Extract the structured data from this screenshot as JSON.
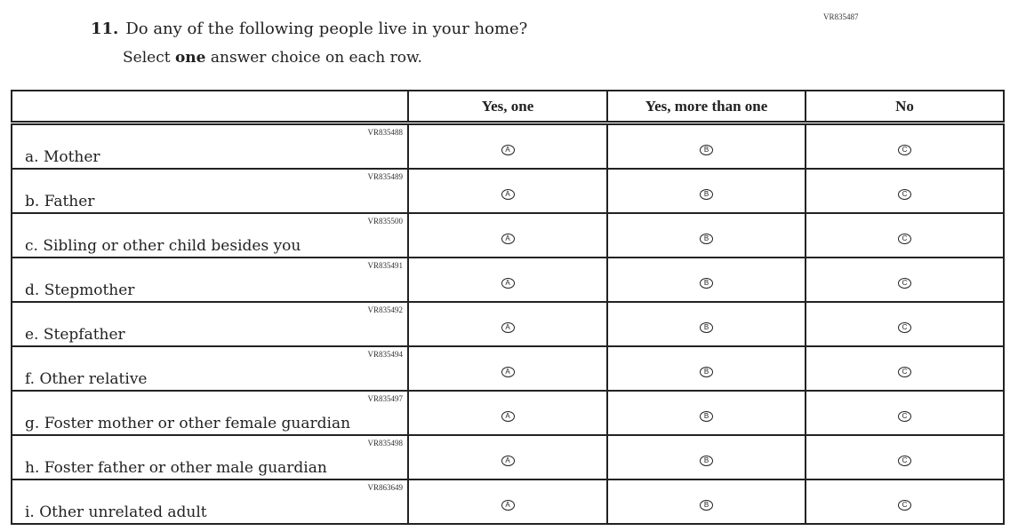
{
  "top_code": "VR835487",
  "question": {
    "number": "11.",
    "text": "Do any of the following people live in your home?",
    "instruction_pre": "Select ",
    "instruction_bold": "one",
    "instruction_post": " answer choice on each row."
  },
  "columns": [
    "Yes, one",
    "Yes, more than one",
    "No"
  ],
  "bubbles": [
    "A",
    "B",
    "C"
  ],
  "rows": [
    {
      "label": "a.  Mother",
      "code": "VR835488"
    },
    {
      "label": "b.  Father",
      "code": "VR835489"
    },
    {
      "label": "c.  Sibling or other child besides you",
      "code": "VR835500"
    },
    {
      "label": "d.  Stepmother",
      "code": "VR835491"
    },
    {
      "label": "e.  Stepfather",
      "code": "VR835492"
    },
    {
      "label": "f.  Other relative",
      "code": "VR835494"
    },
    {
      "label": "g.  Foster mother or other female guardian",
      "code": "VR835497"
    },
    {
      "label": "h.  Foster father or other male guardian",
      "code": "VR835498"
    },
    {
      "label": "i.  Other unrelated adult",
      "code": "VR863649"
    }
  ]
}
